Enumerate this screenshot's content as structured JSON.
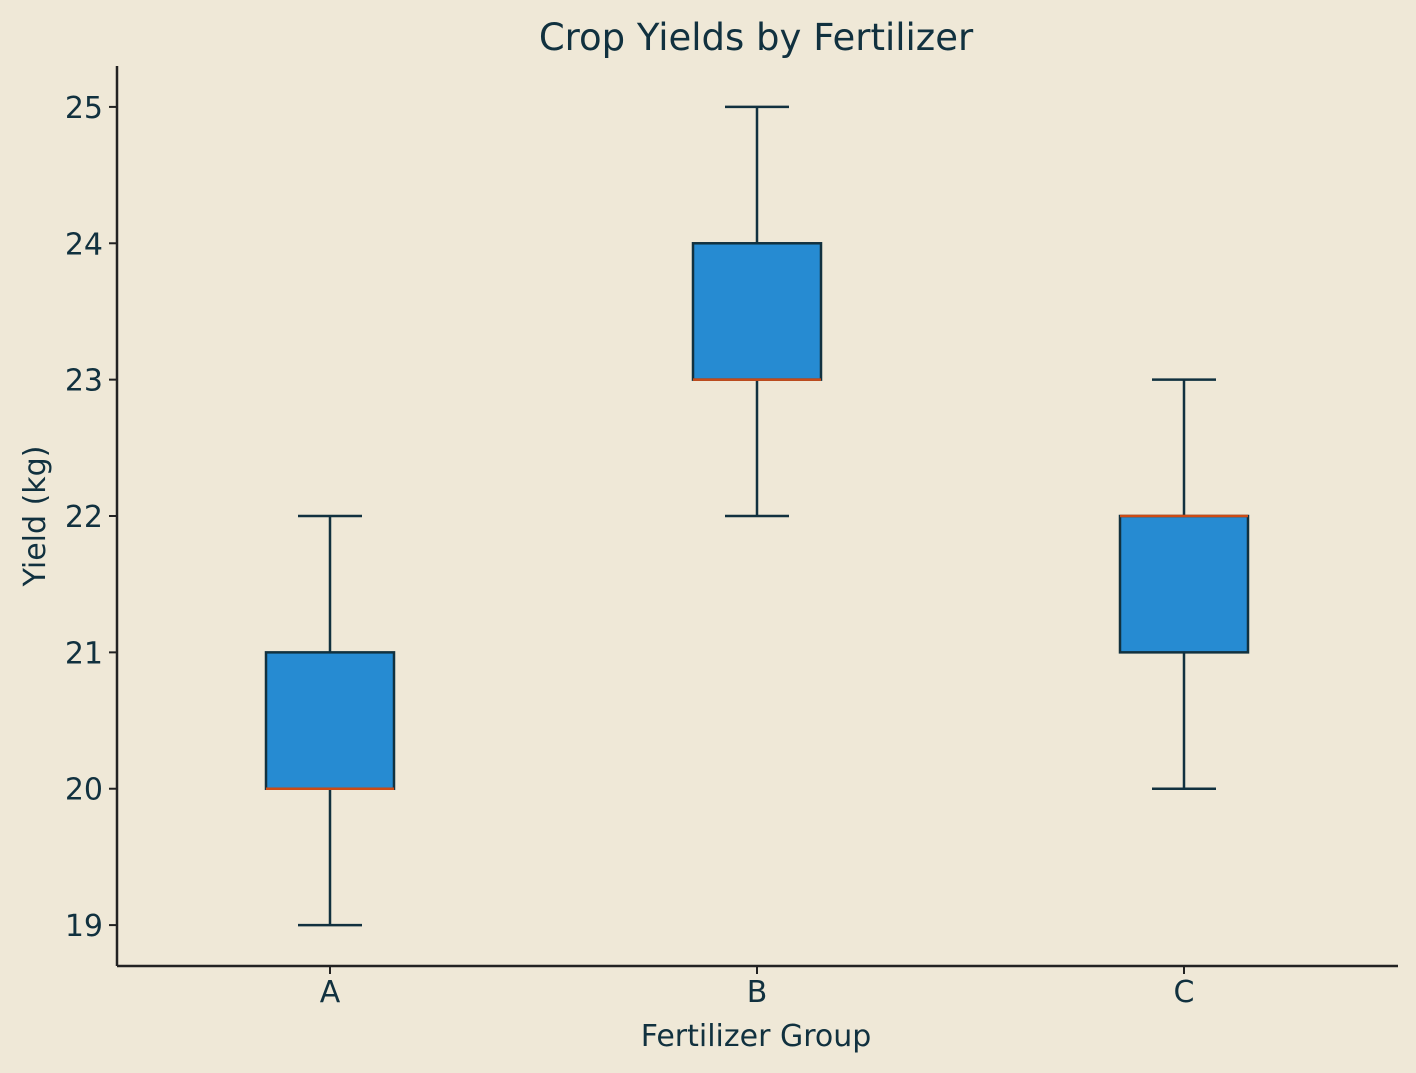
{
  "chart_data": {
    "type": "box",
    "title": "Crop Yields by Fertilizer",
    "xlabel": "Fertilizer Group",
    "ylabel": "Yield (kg)",
    "categories": [
      "A",
      "B",
      "C"
    ],
    "boxes": [
      {
        "category": "A",
        "min": 19,
        "q1": 20,
        "median": 20,
        "q3": 21,
        "max": 22
      },
      {
        "category": "B",
        "min": 22,
        "q1": 23,
        "median": 23,
        "q3": 24,
        "max": 25
      },
      {
        "category": "C",
        "min": 20,
        "q1": 21,
        "median": 22,
        "q3": 22,
        "max": 23
      }
    ],
    "ylim": [
      18.7,
      25.3
    ],
    "yticks": [
      19,
      20,
      21,
      22,
      23,
      24,
      25
    ],
    "grid": false,
    "legend": "none",
    "colors": {
      "background": "#efe8d7",
      "box_fill": "#268bd2",
      "box_edge": "#11313f",
      "median": "#cb4b16",
      "whisker": "#11313f",
      "axis": "#222222",
      "text": "#11313f"
    }
  }
}
